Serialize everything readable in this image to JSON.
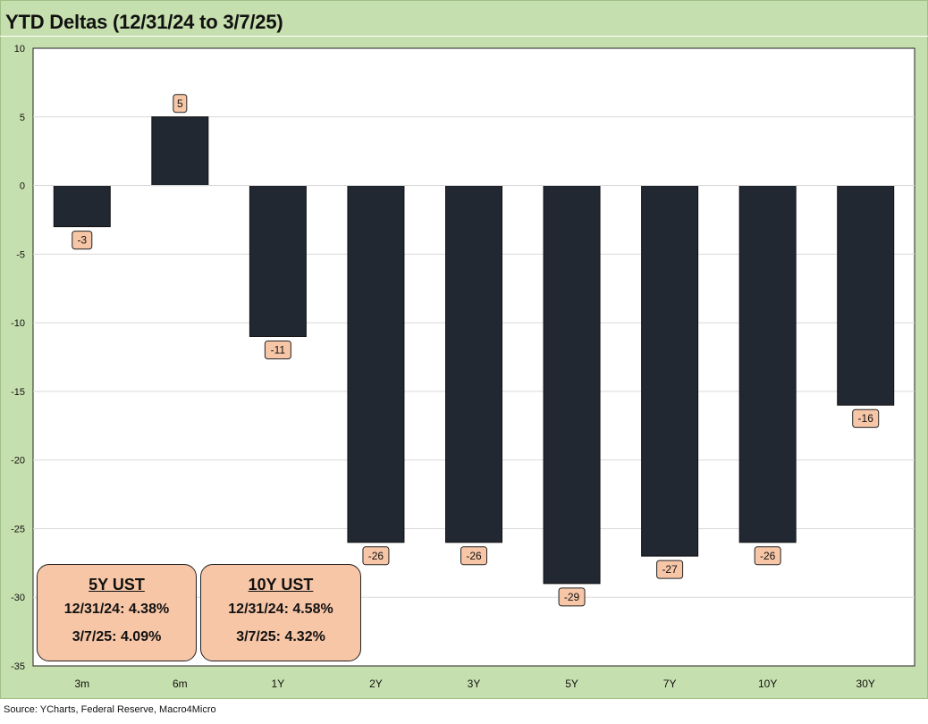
{
  "title": "YTD Deltas (12/31/24 to 3/7/25)",
  "source": "Source: YCharts, Federal Reserve, Macro4Micro",
  "colors": {
    "frame": "#c6dfae",
    "bar": "#222831",
    "label_bg": "#f7c6a7",
    "grid": "#d9d9d9"
  },
  "chart_data": {
    "type": "bar",
    "title": "YTD Deltas (12/31/24 to 3/7/25)",
    "categories": [
      "3m",
      "6m",
      "1Y",
      "2Y",
      "3Y",
      "5Y",
      "7Y",
      "10Y",
      "30Y"
    ],
    "values": [
      -3,
      5,
      -11,
      -26,
      -26,
      -29,
      -27,
      -26,
      -16
    ],
    "data_labels": [
      "-3",
      "5",
      "-11",
      "-26",
      "-26",
      "-29",
      "-27",
      "-26",
      "-16"
    ],
    "ylim": [
      -35,
      10
    ],
    "yticks": [
      10,
      5,
      0,
      -5,
      -10,
      -15,
      -20,
      -25,
      -30,
      -35
    ],
    "grid": true,
    "legend": "none"
  },
  "annotations": [
    {
      "title": "5Y UST",
      "line1": "12/31/24: 4.38%",
      "line2": "3/7/25: 4.09%"
    },
    {
      "title": "10Y UST",
      "line1": "12/31/24: 4.58%",
      "line2": "3/7/25: 4.32%"
    }
  ]
}
